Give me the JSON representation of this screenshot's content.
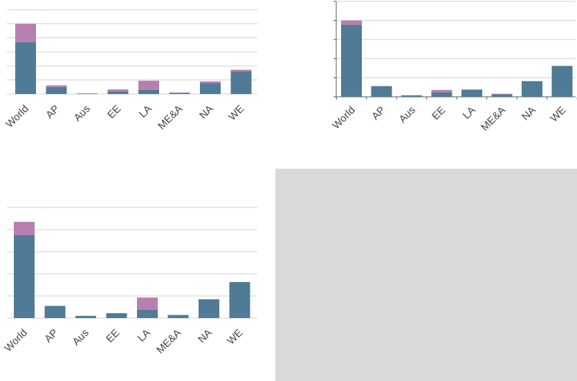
{
  "colors": {
    "base_segment": "#4f7b96",
    "top_segment": "#b77fb0",
    "gray_panel": "#d9d9d9"
  },
  "chart_data": [
    {
      "type": "bar",
      "stacked": true,
      "categories": [
        "World",
        "AP",
        "Aus",
        "EE",
        "LA",
        "ME&A",
        "NA",
        "WE"
      ],
      "series": [
        {
          "values": [
            3.7,
            0.5,
            0.04,
            0.17,
            0.3,
            0.07,
            0.78,
            1.6
          ]
        },
        {
          "values": [
            1.3,
            0.12,
            0.0,
            0.16,
            0.65,
            0.04,
            0.12,
            0.13
          ]
        }
      ],
      "ylim": [
        0,
        6.2
      ],
      "gridlines": [
        1,
        2,
        3,
        4,
        5,
        6
      ],
      "grid": true,
      "title": "",
      "xlabel": "",
      "ylabel": ""
    },
    {
      "type": "bar",
      "stacked": true,
      "categories": [
        "World",
        "AP",
        "Aus",
        "EE",
        "LA",
        "ME&A",
        "NA",
        "WE"
      ],
      "series": [
        {
          "values": [
            3.77,
            0.55,
            0.08,
            0.24,
            0.38,
            0.13,
            0.82,
            1.62
          ]
        },
        {
          "values": [
            0.23,
            0.02,
            0.0,
            0.12,
            0.0,
            0.03,
            0.0,
            0.0
          ]
        }
      ],
      "ylim": [
        0,
        5
      ],
      "gridlines": [
        1,
        2,
        3,
        4,
        5
      ],
      "grid": true,
      "title": "",
      "xlabel": "",
      "ylabel": ""
    },
    {
      "type": "bar",
      "stacked": true,
      "categories": [
        "World",
        "AP",
        "Aus",
        "EE",
        "LA",
        "ME&A",
        "NA",
        "WE"
      ],
      "series": [
        {
          "values": [
            3.75,
            0.55,
            0.1,
            0.22,
            0.38,
            0.14,
            0.85,
            1.63
          ]
        },
        {
          "values": [
            0.6,
            0.0,
            0.0,
            0.0,
            0.55,
            0.0,
            0.0,
            0.0
          ]
        }
      ],
      "ylim": [
        0,
        5
      ],
      "gridlines": [
        1,
        2,
        3,
        4,
        5
      ],
      "grid": true,
      "title": "",
      "xlabel": "",
      "ylabel": ""
    }
  ]
}
